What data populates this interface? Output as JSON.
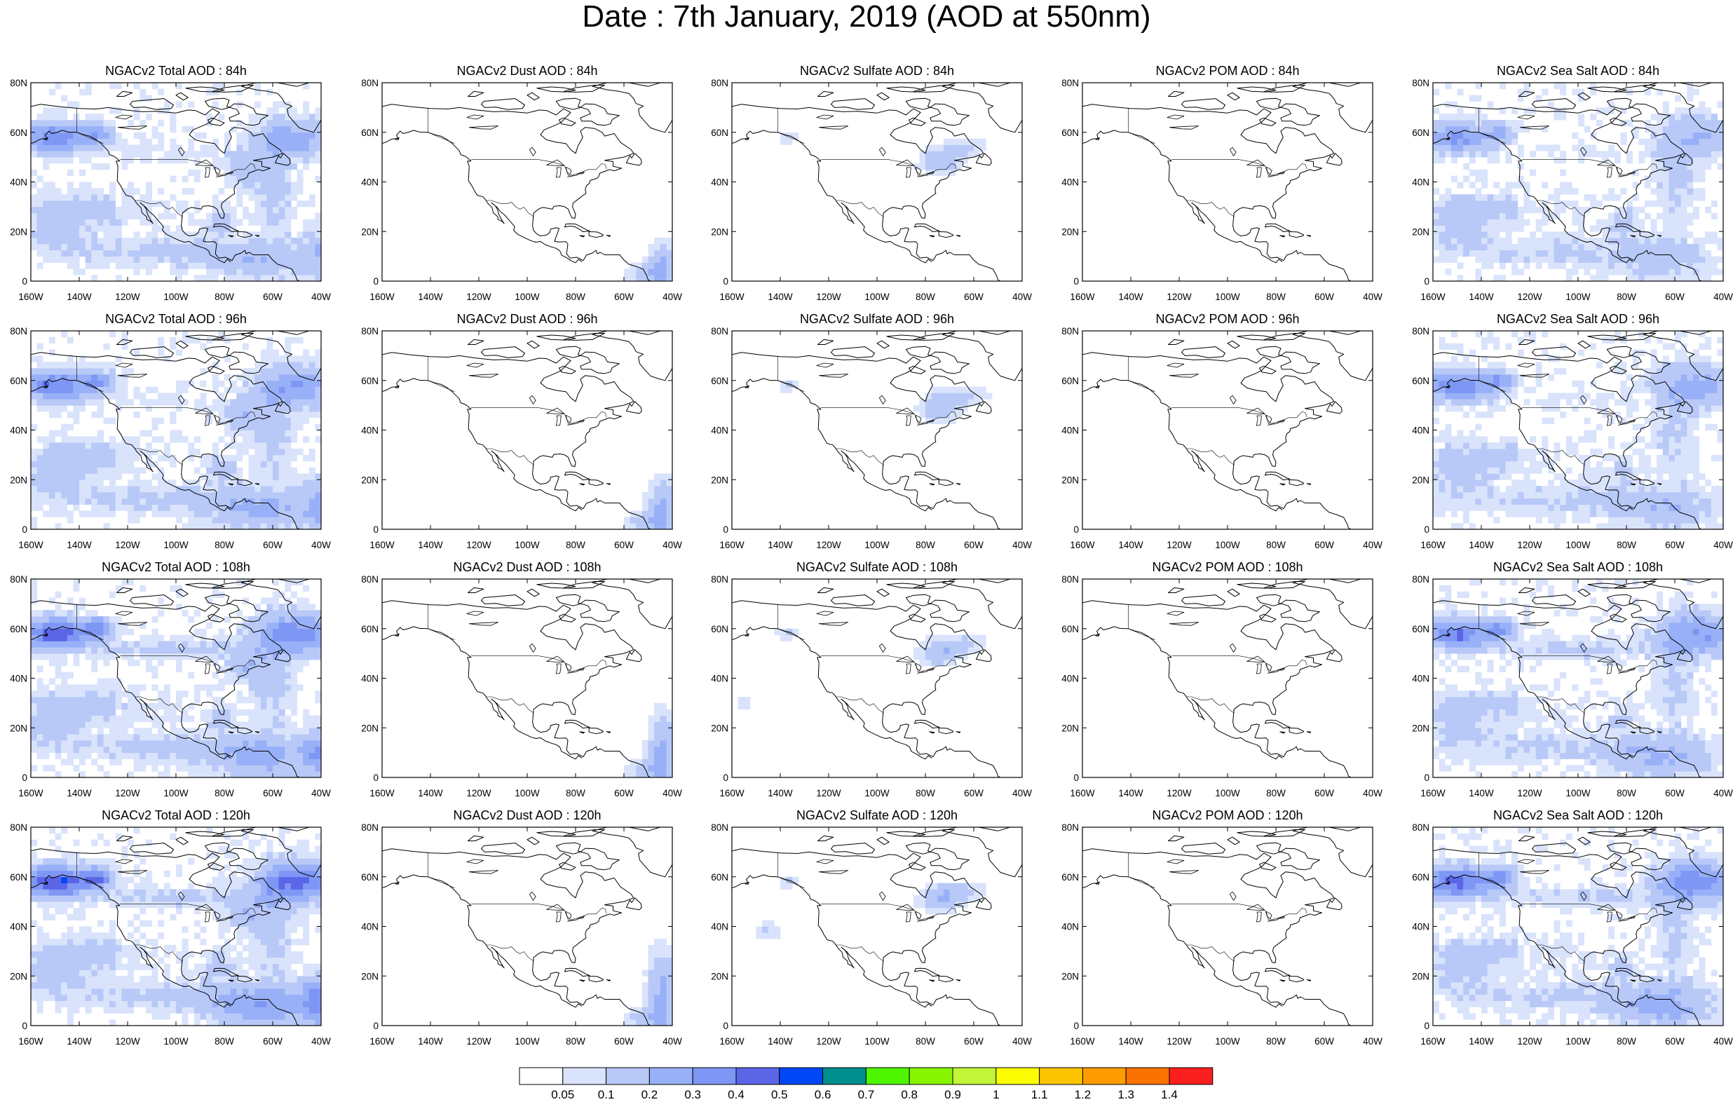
{
  "title": "Date : 7th January, 2019 (AOD at 550nm)",
  "panel_titles": [
    [
      "NGACv2 Total AOD : 84h",
      "NGACv2 Dust AOD : 84h",
      "NGACv2 Sulfate AOD : 84h",
      "NGACv2 POM AOD : 84h",
      "NGACv2 Sea Salt AOD : 84h"
    ],
    [
      "NGACv2 Total AOD : 96h",
      "NGACv2 Dust AOD : 96h",
      "NGACv2 Sulfate AOD : 96h",
      "NGACv2 POM AOD : 96h",
      "NGACv2 Sea Salt AOD : 96h"
    ],
    [
      "NGACv2 Total AOD : 108h",
      "NGACv2 Dust AOD : 108h",
      "NGACv2 Sulfate AOD : 108h",
      "NGACv2 POM AOD : 108h",
      "NGACv2 Sea Salt AOD : 108h"
    ],
    [
      "NGACv2 Total AOD : 120h",
      "NGACv2 Dust AOD : 120h",
      "NGACv2 Sulfate AOD : 120h",
      "NGACv2 POM AOD : 120h",
      "NGACv2 Sea Salt  AOD : 120h"
    ]
  ],
  "map": {
    "lon_range": [
      -160,
      -40
    ],
    "lat_range": [
      0,
      80
    ],
    "lat_ticks": [
      "80N",
      "60N",
      "40N",
      "20N",
      "0"
    ],
    "lon_ticks": [
      "160W",
      "140W",
      "120W",
      "100W",
      "80W",
      "60W",
      "40W"
    ]
  },
  "colorbar": {
    "colors": [
      "#ffffff",
      "#d9e3fb",
      "#b8c9f8",
      "#98b0f7",
      "#7e96f4",
      "#5a66e6",
      "#0048f6",
      "#008d8d",
      "#4ef600",
      "#87f600",
      "#c2f538",
      "#fcfc00",
      "#fcc400",
      "#fc9c00",
      "#fc7200",
      "#fc1f1f"
    ],
    "labels": [
      "0.05",
      "0.1",
      "0.2",
      "0.3",
      "0.4",
      "0.5",
      "0.6",
      "0.7",
      "0.8",
      "0.9",
      "1",
      "1.1",
      "1.2",
      "1.3",
      "1.4"
    ]
  }
}
